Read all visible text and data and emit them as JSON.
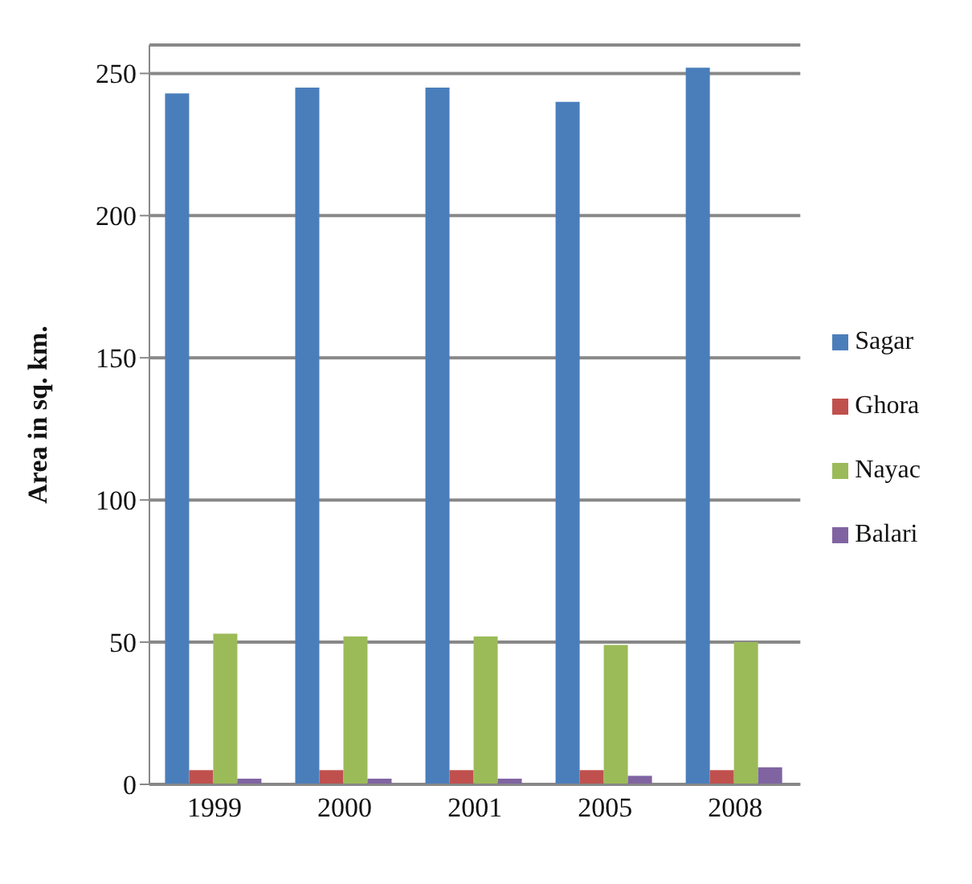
{
  "chart_data": {
    "type": "bar",
    "ylabel": "Area in sq. km.",
    "categories": [
      "1999",
      "2000",
      "2001",
      "2005",
      "2008"
    ],
    "series": [
      {
        "name": "Sagar",
        "color": "#4a7ebb",
        "values": [
          243,
          245,
          245,
          240,
          252
        ]
      },
      {
        "name": "Ghora",
        "color": "#c0504d",
        "values": [
          5,
          5,
          5,
          5,
          5
        ]
      },
      {
        "name": "Nayac",
        "color": "#9bbb59",
        "values": [
          53,
          52,
          52,
          49,
          50
        ]
      },
      {
        "name": "Balari",
        "color": "#8064a2",
        "values": [
          2,
          2,
          2,
          3,
          6
        ]
      }
    ],
    "ylim": [
      0,
      260
    ],
    "yticks": [
      0,
      50,
      100,
      150,
      200,
      250
    ],
    "grid": "y",
    "legend": "right"
  }
}
